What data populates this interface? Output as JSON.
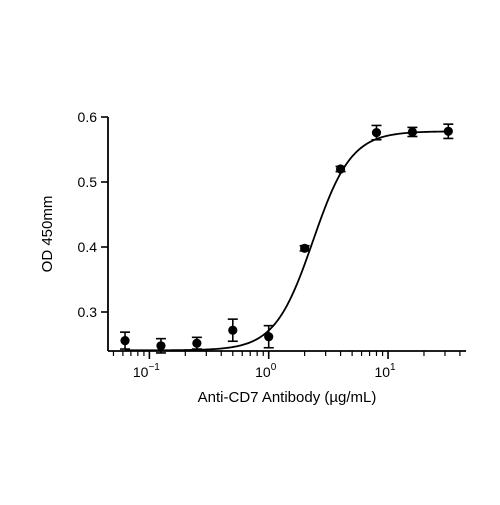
{
  "chart_data": {
    "type": "scatter",
    "title": "",
    "xlabel": "Anti-CD7 Antibody (µg/mL)",
    "ylabel": "OD 450mm",
    "x_scale": "log",
    "xlim": [
      0.045,
      45
    ],
    "ylim": [
      0.24,
      0.6
    ],
    "x_ticks": [
      {
        "value": 0.1,
        "base": "10",
        "exp": "−1"
      },
      {
        "value": 1,
        "base": "10",
        "exp": "0"
      },
      {
        "value": 10,
        "base": "10",
        "exp": "1"
      }
    ],
    "y_ticks": [
      {
        "value": 0.3,
        "label": "0.3"
      },
      {
        "value": 0.4,
        "label": "0.4"
      },
      {
        "value": 0.5,
        "label": "0.5"
      },
      {
        "value": 0.6,
        "label": "0.6"
      }
    ],
    "grid": false,
    "legend": "none",
    "marker_color": "#000000",
    "points": [
      {
        "x": 0.0625,
        "y": 0.256,
        "err": 0.013
      },
      {
        "x": 0.125,
        "y": 0.248,
        "err": 0.011
      },
      {
        "x": 0.25,
        "y": 0.252,
        "err": 0.009
      },
      {
        "x": 0.5,
        "y": 0.272,
        "err": 0.017
      },
      {
        "x": 1,
        "y": 0.262,
        "err": 0.017
      },
      {
        "x": 2,
        "y": 0.398,
        "err": 0.004
      },
      {
        "x": 4,
        "y": 0.52,
        "err": 0.004
      },
      {
        "x": 8,
        "y": 0.576,
        "err": 0.011
      },
      {
        "x": 16,
        "y": 0.577,
        "err": 0.007
      },
      {
        "x": 32,
        "y": 0.578,
        "err": 0.011
      }
    ],
    "fit_curve": {
      "model": "4PL",
      "bottom": 0.241,
      "top": 0.578,
      "ec50": 2.35,
      "hill": 2.7,
      "x_range": [
        0.0625,
        32
      ]
    }
  }
}
